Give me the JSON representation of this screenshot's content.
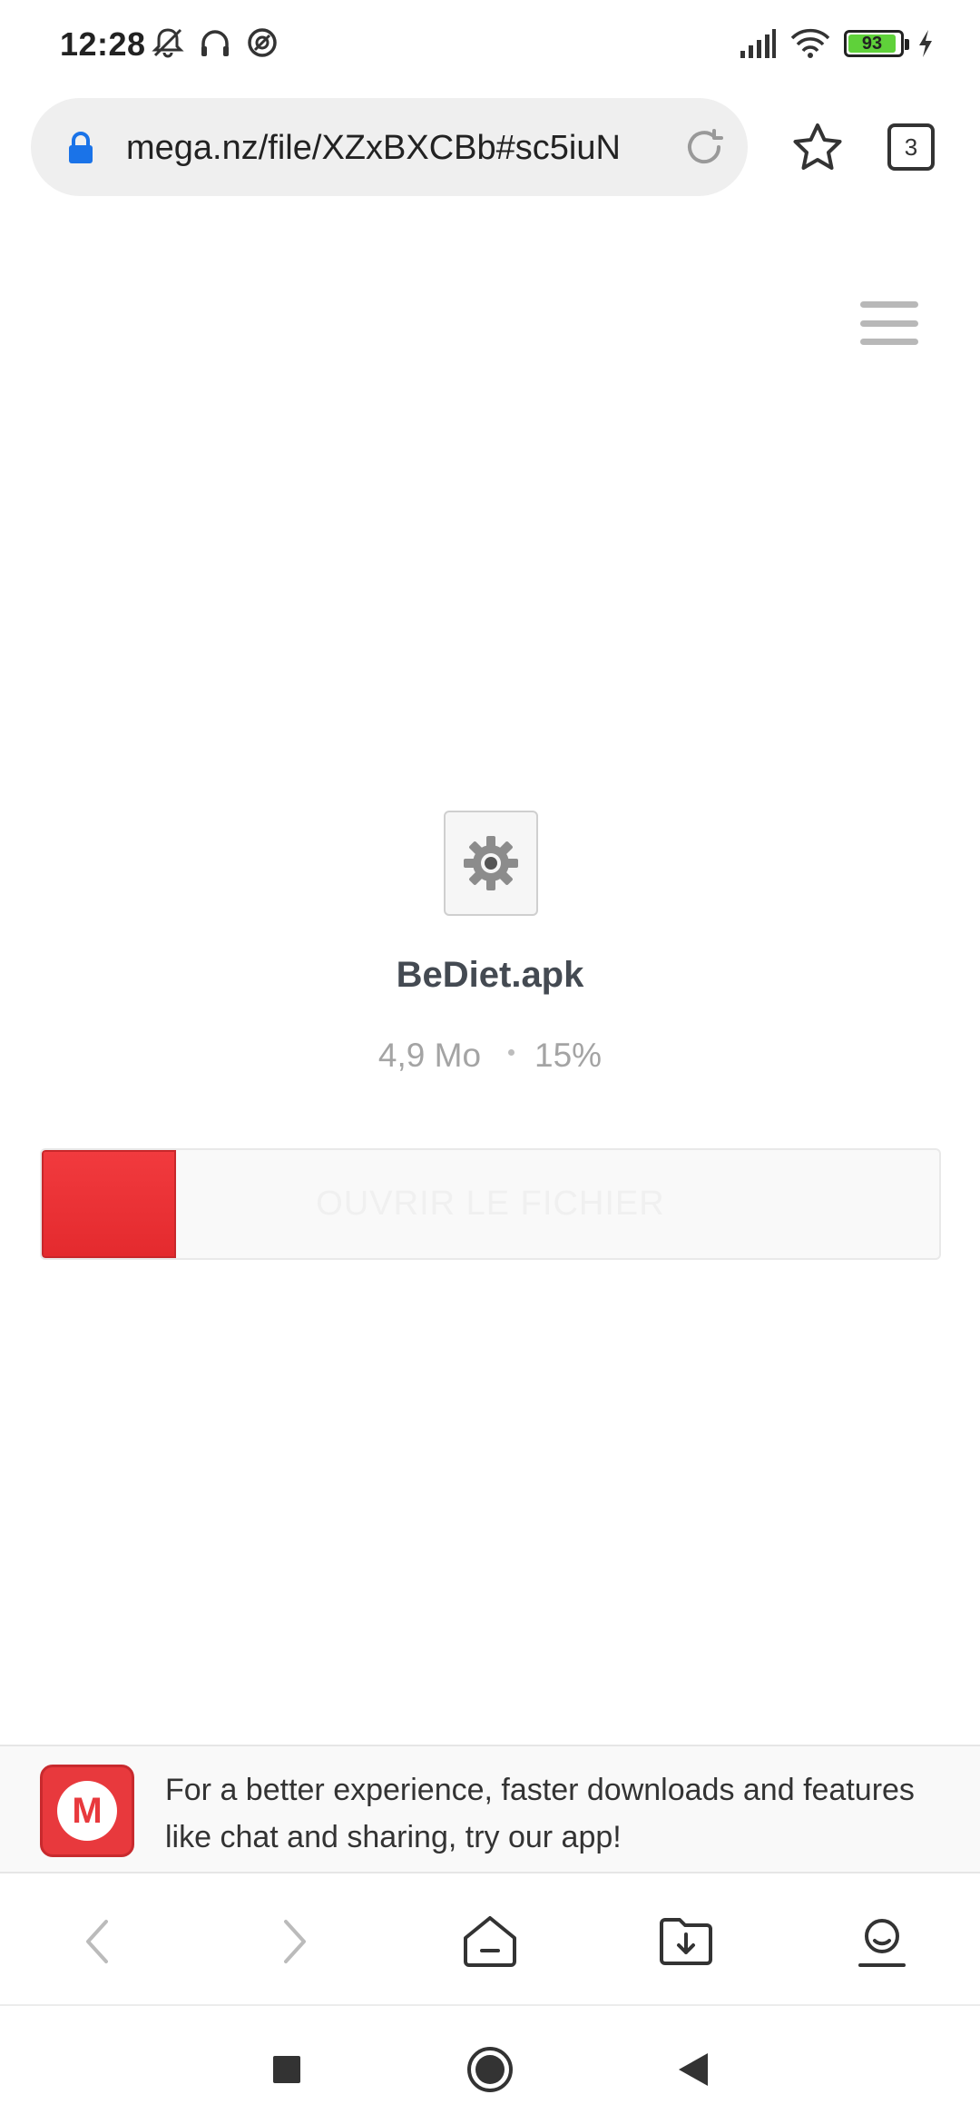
{
  "status_bar": {
    "time": "12:28",
    "icons": [
      "mute-icon",
      "headphones-icon",
      "data-saver-icon"
    ],
    "battery_level": "93",
    "battery_color": "#5fd13a",
    "right_icons": [
      "signal-icon",
      "wifi-icon",
      "battery-icon",
      "charging-icon"
    ]
  },
  "browser": {
    "url": "mega.nz/file/XZxBXCBb#sc5iuN",
    "tab_count": "3"
  },
  "file": {
    "name": "BeDiet.apk",
    "size": "4,9 Mo",
    "progress_text": "15%",
    "progress_fraction": 0.15
  },
  "download_button": {
    "label": "OUVRIR LE FICHIER",
    "accent_color": "#e8393d"
  },
  "app_banner": {
    "text": "For a better experience, faster downloads and features like chat and sharing, try our app!",
    "logo_letter": "M"
  },
  "bottom_nav": [
    "back-icon",
    "forward-icon",
    "home-icon",
    "downloads-icon",
    "profile-icon"
  ],
  "system_nav": [
    "recents-icon",
    "home-icon",
    "back-icon"
  ]
}
